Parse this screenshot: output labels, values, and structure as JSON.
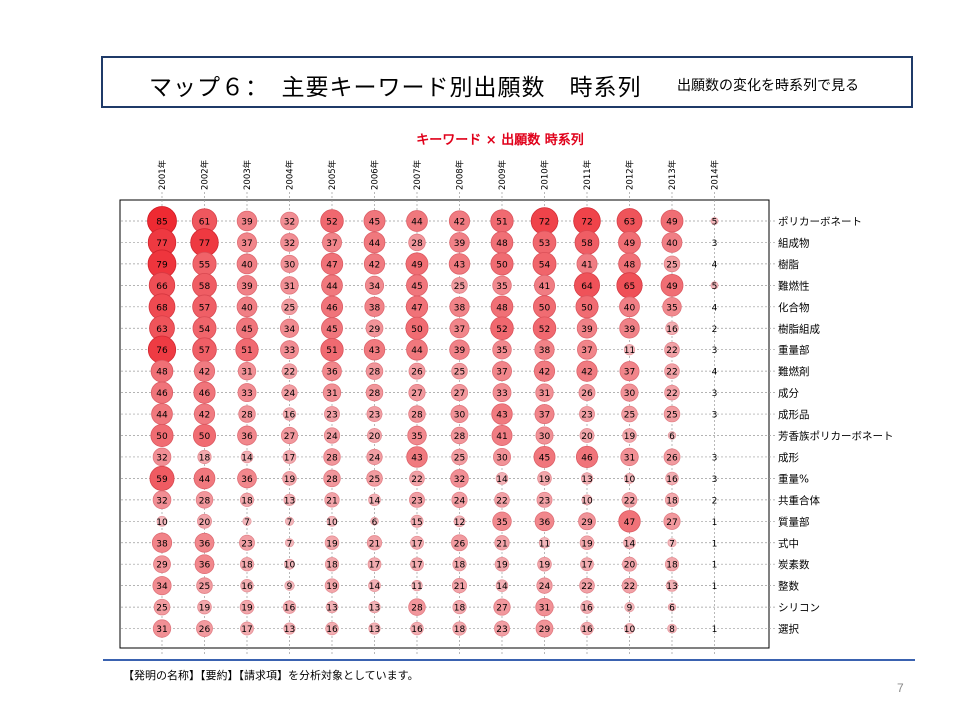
{
  "slide": {
    "title": "マップ６：　主要キーワード別出願数　時系列",
    "subtitle": "出願数の変化を時系列で見る",
    "footer_note": "【発明の名称】【要約】【請求項】を分析対象としています。",
    "page_number": "7"
  },
  "colors": {
    "title_border": "#1f3a68",
    "footer_line": "#3a62b0",
    "chart_title": "#e0001a",
    "bubble_base": "#f2b8bc",
    "bubble_strong": "#ee2a32"
  },
  "chart_data": {
    "type": "bubble-matrix",
    "title": "キーワード × 出願数 時系列",
    "years": [
      "2001年",
      "2002年",
      "2003年",
      "2004年",
      "2005年",
      "2006年",
      "2007年",
      "2008年",
      "2009年",
      "2010年",
      "2011年",
      "2012年",
      "2013年",
      "2014年"
    ],
    "keywords": [
      "ポリカーボネート",
      "組成物",
      "樹脂",
      "難燃性",
      "化合物",
      "樹脂組成",
      "重量部",
      "難燃剤",
      "成分",
      "成形品",
      "芳香族ポリカーボネート",
      "成形",
      "重量%",
      "共重合体",
      "質量部",
      "式中",
      "炭素数",
      "整数",
      "シリコン",
      "選択"
    ],
    "values": [
      [
        85,
        61,
        39,
        32,
        52,
        45,
        44,
        42,
        51,
        72,
        72,
        63,
        49,
        5
      ],
      [
        77,
        77,
        37,
        32,
        37,
        44,
        28,
        39,
        48,
        53,
        58,
        49,
        40,
        3
      ],
      [
        79,
        55,
        40,
        30,
        47,
        42,
        49,
        43,
        50,
        54,
        41,
        48,
        25,
        4
      ],
      [
        66,
        58,
        39,
        31,
        44,
        34,
        45,
        25,
        35,
        41,
        64,
        65,
        49,
        5
      ],
      [
        68,
        57,
        40,
        25,
        46,
        38,
        47,
        38,
        48,
        50,
        50,
        40,
        35,
        4
      ],
      [
        63,
        54,
        45,
        34,
        45,
        29,
        50,
        37,
        52,
        52,
        39,
        39,
        16,
        2
      ],
      [
        76,
        57,
        51,
        33,
        51,
        43,
        44,
        39,
        35,
        38,
        37,
        11,
        22,
        3
      ],
      [
        48,
        42,
        31,
        22,
        36,
        28,
        26,
        25,
        37,
        42,
        42,
        37,
        22,
        4
      ],
      [
        46,
        46,
        33,
        24,
        31,
        28,
        27,
        27,
        33,
        31,
        26,
        30,
        22,
        3
      ],
      [
        44,
        42,
        28,
        16,
        23,
        23,
        28,
        30,
        43,
        37,
        23,
        25,
        25,
        3
      ],
      [
        50,
        50,
        36,
        27,
        24,
        20,
        35,
        28,
        41,
        30,
        20,
        19,
        6,
        null
      ],
      [
        32,
        18,
        14,
        17,
        28,
        24,
        43,
        25,
        30,
        45,
        46,
        31,
        26,
        3
      ],
      [
        59,
        44,
        36,
        19,
        28,
        25,
        22,
        32,
        14,
        19,
        13,
        10,
        16,
        3
      ],
      [
        32,
        28,
        18,
        13,
        21,
        14,
        23,
        24,
        22,
        23,
        10,
        22,
        18,
        2
      ],
      [
        10,
        20,
        7,
        7,
        10,
        6,
        15,
        12,
        35,
        36,
        29,
        47,
        27,
        1
      ],
      [
        38,
        36,
        23,
        7,
        19,
        21,
        17,
        26,
        21,
        11,
        19,
        14,
        7,
        1
      ],
      [
        29,
        36,
        18,
        10,
        18,
        17,
        17,
        18,
        19,
        19,
        17,
        20,
        18,
        1
      ],
      [
        34,
        25,
        16,
        9,
        19,
        14,
        11,
        21,
        14,
        24,
        22,
        22,
        13,
        1
      ],
      [
        25,
        19,
        19,
        16,
        13,
        13,
        28,
        18,
        27,
        31,
        16,
        9,
        6,
        null
      ],
      [
        31,
        26,
        17,
        13,
        16,
        13,
        16,
        18,
        23,
        29,
        16,
        10,
        8,
        1
      ]
    ]
  }
}
